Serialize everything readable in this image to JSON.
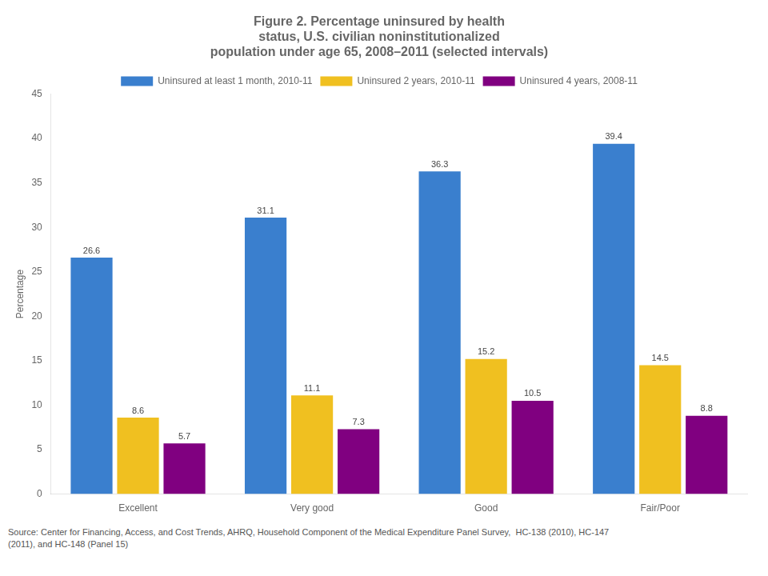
{
  "chart_data": {
    "type": "bar",
    "title": "Figure 2. Percentage uninsured by health\nstatus, U.S. civilian noninstitutionalized\npopulation under age 65, 2008–2011 (selected intervals)",
    "categories": [
      "Excellent",
      "Very good",
      "Good",
      "Fair/Poor"
    ],
    "series": [
      {
        "name": "Uninsured at least 1 month, 2010-11",
        "color": "#3a7fce",
        "values": [
          26.6,
          31.1,
          36.3,
          39.4
        ]
      },
      {
        "name": "Uninsured 2 years, 2010-11",
        "color": "#f0c020",
        "values": [
          8.6,
          11.1,
          15.2,
          14.5
        ]
      },
      {
        "name": "Uninsured 4 years, 2008-11",
        "color": "#800080",
        "values": [
          5.7,
          7.3,
          10.5,
          8.8
        ]
      }
    ],
    "ylabel": "Percentage",
    "ylim": [
      0,
      45
    ],
    "yticks": [
      0,
      5,
      10,
      15,
      20,
      25,
      30,
      35,
      40,
      45
    ],
    "grid": false,
    "legend": "top",
    "data_labels": true,
    "source": "Source: Center for Financing, Access, and Cost Trends, AHRQ, Household Component of the Medical Expenditure Panel Survey,  HC-138 (2010), HC-147\n(2011), and HC-148 (Panel 15)"
  }
}
